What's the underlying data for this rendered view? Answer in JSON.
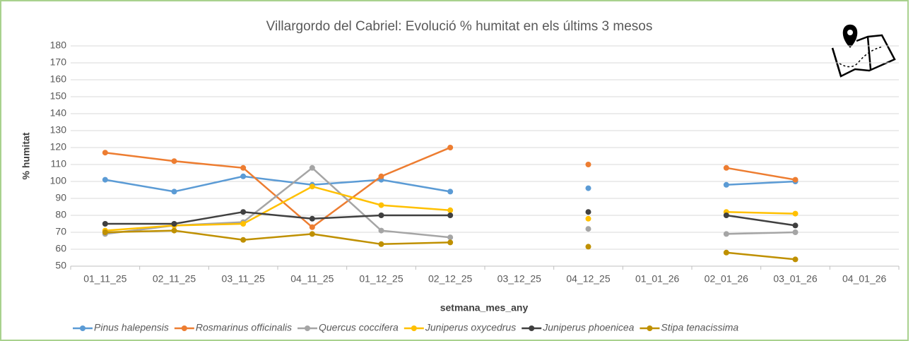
{
  "chart_data": {
    "type": "line",
    "title": "Villargordo del Cabriel: Evolució % humitat en els últims 3 mesos",
    "x_label": "setmana_mes_any",
    "y_label": "% humitat",
    "categories": [
      "01_11_25",
      "02_11_25",
      "03_11_25",
      "04_11_25",
      "01_12_25",
      "02_12_25",
      "03_12_25",
      "04_12_25",
      "01_01_26",
      "02_01_26",
      "03_01_26",
      "04_01_26"
    ],
    "series": [
      {
        "name": "Pinus halepensis",
        "color": "#5b9bd5",
        "values": [
          101,
          94,
          103,
          98,
          101,
          94,
          null,
          96,
          null,
          98,
          100,
          null
        ]
      },
      {
        "name": "Rosmarinus officinalis",
        "color": "#ed7d31",
        "values": [
          117,
          112,
          108,
          73,
          103,
          120,
          null,
          110,
          null,
          108,
          101,
          null
        ]
      },
      {
        "name": "Quercus coccifera",
        "color": "#a5a5a5",
        "values": [
          69,
          74,
          76,
          108,
          71,
          67,
          null,
          72,
          null,
          69,
          70,
          null
        ]
      },
      {
        "name": "Juniperus oxycedrus",
        "color": "#ffc000",
        "values": [
          71,
          74,
          75,
          97,
          86,
          83,
          null,
          78,
          null,
          82,
          81,
          null
        ]
      },
      {
        "name": "Juniperus phoenicea",
        "color": "#404040",
        "values": [
          75,
          75,
          82,
          78,
          80,
          80,
          null,
          82,
          null,
          80,
          74,
          null
        ]
      },
      {
        "name": "Stipa tenacissima",
        "color": "#bf9000",
        "values": [
          70,
          71,
          65.5,
          69,
          63,
          64,
          null,
          61.5,
          null,
          58,
          54,
          null
        ]
      }
    ],
    "ylim": [
      50,
      180
    ],
    "yticks": [
      50,
      60,
      70,
      80,
      90,
      100,
      110,
      120,
      130,
      140,
      150,
      160,
      170,
      180
    ],
    "grid": true
  }
}
